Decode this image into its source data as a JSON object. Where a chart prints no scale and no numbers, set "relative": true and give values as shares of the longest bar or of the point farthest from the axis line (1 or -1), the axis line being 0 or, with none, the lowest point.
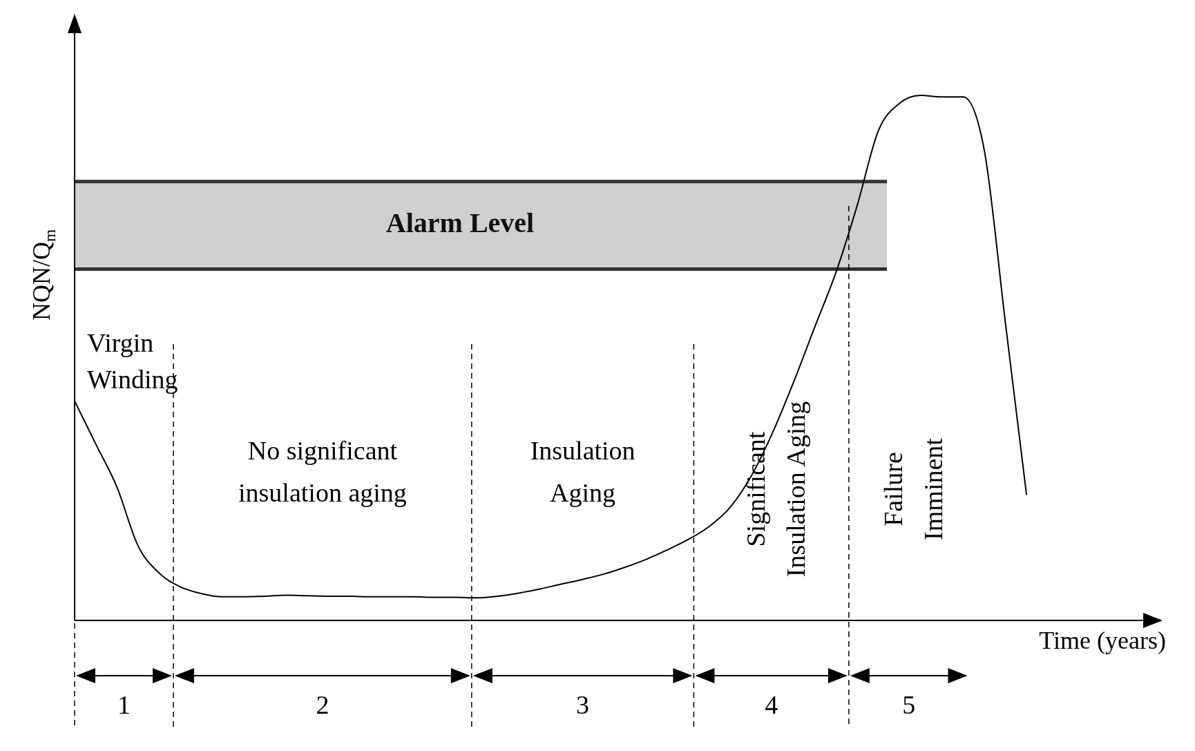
{
  "chart_data": {
    "type": "line",
    "relative": true,
    "ylabel": "NQN/Q$_{m}$",
    "xlabel": "Time (years)",
    "categories": [
      null,
      null,
      null,
      null,
      null,
      null,
      null,
      null,
      null,
      null,
      null,
      null,
      null,
      null,
      null,
      null,
      null,
      null,
      null,
      null,
      null,
      null,
      null,
      null,
      null,
      null,
      null,
      null,
      null,
      null,
      null,
      null,
      null,
      null,
      null,
      null,
      null,
      null,
      null,
      null,
      null,
      null,
      null,
      null,
      null,
      null,
      null,
      null,
      null
    ],
    "series": [
      {
        "color": "#000000",
        "values": [
          0.418,
          0.336,
          0.254,
          0.142,
          0.09,
          0.064,
          0.051,
          0.045,
          0.045,
          0.046,
          0.048,
          0.047,
          0.046,
          0.046,
          0.045,
          0.045,
          0.045,
          0.044,
          0.044,
          0.043,
          0.046,
          0.052,
          0.06,
          0.069,
          0.078,
          0.088,
          0.101,
          0.116,
          0.134,
          0.154,
          0.179,
          0.216,
          0.276,
          0.358,
          0.455,
          0.56,
          0.664,
          0.791,
          0.933,
          0.985,
          1,
          0.997,
          0.997,
          0.896,
          0.567,
          0.239,
          null,
          null,
          null
        ]
      }
    ],
    "marker": "none",
    "line_style": "solid",
    "ref_lines": [
      {
        "axis": "y",
        "value": 0.836,
        "color": "#333333"
      },
      {
        "axis": "y",
        "value": 0.669,
        "color": "#333333"
      }
    ],
    "bands": [
      {
        "axis": "y",
        "from": 0.669,
        "to": 0.836,
        "label": "Alarm Level",
        "color": "#d0d0d0"
      }
    ],
    "annotations": [
      "Virgin Winding",
      "No significant insulation aging",
      "Insulation Aging",
      "Significant Insulation Aging",
      "Failure Imminent",
      "1",
      "2",
      "3",
      "4",
      "5"
    ]
  }
}
